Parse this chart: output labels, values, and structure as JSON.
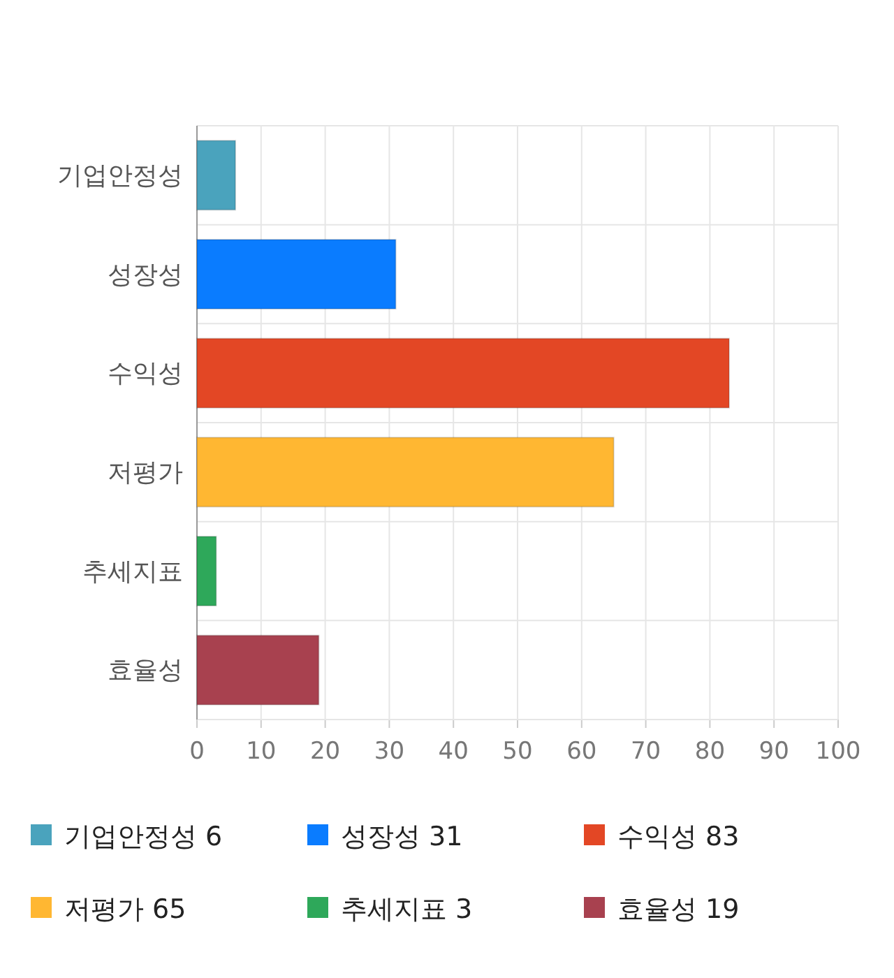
{
  "chart_data": {
    "type": "bar",
    "orientation": "horizontal",
    "stacked": true,
    "categories": [
      "기업안정성",
      "성장성",
      "수익성",
      "저평가",
      "추세지표",
      "효율성"
    ],
    "series": [
      {
        "name": "기업안정성 6",
        "color": "#4aa3bd",
        "values": [
          6,
          null,
          null,
          null,
          null,
          null
        ]
      },
      {
        "name": "성장성 31",
        "color": "#0a7cff",
        "values": [
          null,
          31,
          null,
          null,
          null,
          null
        ]
      },
      {
        "name": "수익성 83",
        "color": "#e34725",
        "values": [
          null,
          null,
          83,
          null,
          null,
          null
        ]
      },
      {
        "name": "저평가 65",
        "color": "#ffb732",
        "values": [
          null,
          null,
          null,
          65,
          null,
          null
        ]
      },
      {
        "name": "추세지표 3",
        "color": "#2ea85a",
        "values": [
          null,
          null,
          null,
          null,
          3,
          null
        ]
      },
      {
        "name": "효율성 19",
        "color": "#a8414f",
        "values": [
          null,
          null,
          null,
          null,
          null,
          19
        ]
      }
    ],
    "xlim": [
      0,
      100
    ],
    "xticks": [
      0,
      10,
      20,
      30,
      40,
      50,
      60,
      70,
      80,
      90,
      100
    ],
    "grid": true,
    "legend": "bottom"
  }
}
